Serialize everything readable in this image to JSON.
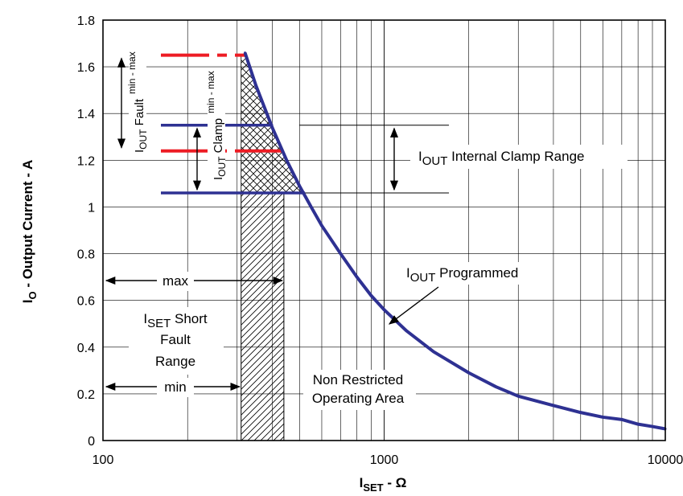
{
  "chart_data": {
    "type": "line",
    "x_scale": "log",
    "xlim": [
      100,
      10000
    ],
    "ylim": [
      0,
      1.8
    ],
    "grid": true,
    "x_ticks": [
      "100",
      "1000",
      "10000"
    ],
    "y_ticks": [
      "0",
      "0.2",
      "0.4",
      "0.6",
      "0.8",
      "1",
      "1.2",
      "1.4",
      "1.6",
      "1.8"
    ],
    "xlabel": {
      "main": "I",
      "sub": "SET",
      "rest": " - Ω"
    },
    "ylabel": {
      "main": "I",
      "sub": "O",
      "rest": " - Output Current - A"
    },
    "series": [
      {
        "name": "I_OUT Programmed",
        "color": "#2e3192",
        "points": [
          [
            320,
            1.66
          ],
          [
            350,
            1.52
          ],
          [
            400,
            1.34
          ],
          [
            450,
            1.2
          ],
          [
            500,
            1.09
          ],
          [
            550,
            1.0
          ],
          [
            600,
            0.92
          ],
          [
            700,
            0.8
          ],
          [
            800,
            0.7
          ],
          [
            900,
            0.62
          ],
          [
            1000,
            0.56
          ],
          [
            1200,
            0.47
          ],
          [
            1500,
            0.38
          ],
          [
            2000,
            0.29
          ],
          [
            2500,
            0.23
          ],
          [
            3000,
            0.19
          ],
          [
            4000,
            0.15
          ],
          [
            5000,
            0.12
          ],
          [
            6000,
            0.1
          ],
          [
            7000,
            0.09
          ],
          [
            8000,
            0.07
          ],
          [
            9000,
            0.06
          ],
          [
            10000,
            0.05
          ]
        ]
      }
    ],
    "fault_lines": {
      "color": "#ed1c24",
      "y": [
        1.65,
        1.24
      ],
      "x_end": 320
    },
    "clamp_lines": {
      "color": "#2e3192",
      "y": [
        1.35,
        1.06
      ],
      "x_end": [
        335,
        530
      ]
    },
    "clamp_range_ref_lines": {
      "y": [
        1.35,
        1.06
      ],
      "x": [
        1000,
        1700
      ]
    },
    "short_fault_region": {
      "min_x": 310,
      "max_x": 440
    },
    "labels": {
      "clamp_range": {
        "main": "I",
        "sub": "OUT",
        "rest": " Internal Clamp Range"
      },
      "programmed": {
        "main": "I",
        "sub": "OUT",
        "rest": " Programmed"
      },
      "fault_range": {
        "main": "I",
        "sub": "OUT",
        "rest": " Fault",
        "extra": "min - max"
      },
      "clamp_minmax": {
        "main": "I",
        "sub": "OUT",
        "rest": " Clamp",
        "extra": "min - max"
      },
      "max": "max",
      "min": "min",
      "short_fault": {
        "main": "I",
        "sub": "SET",
        "rest": " Short",
        "line2": "Fault",
        "line3": "Range"
      },
      "non_restricted_1": "Non Restricted",
      "non_restricted_2": "Operating Area"
    }
  }
}
